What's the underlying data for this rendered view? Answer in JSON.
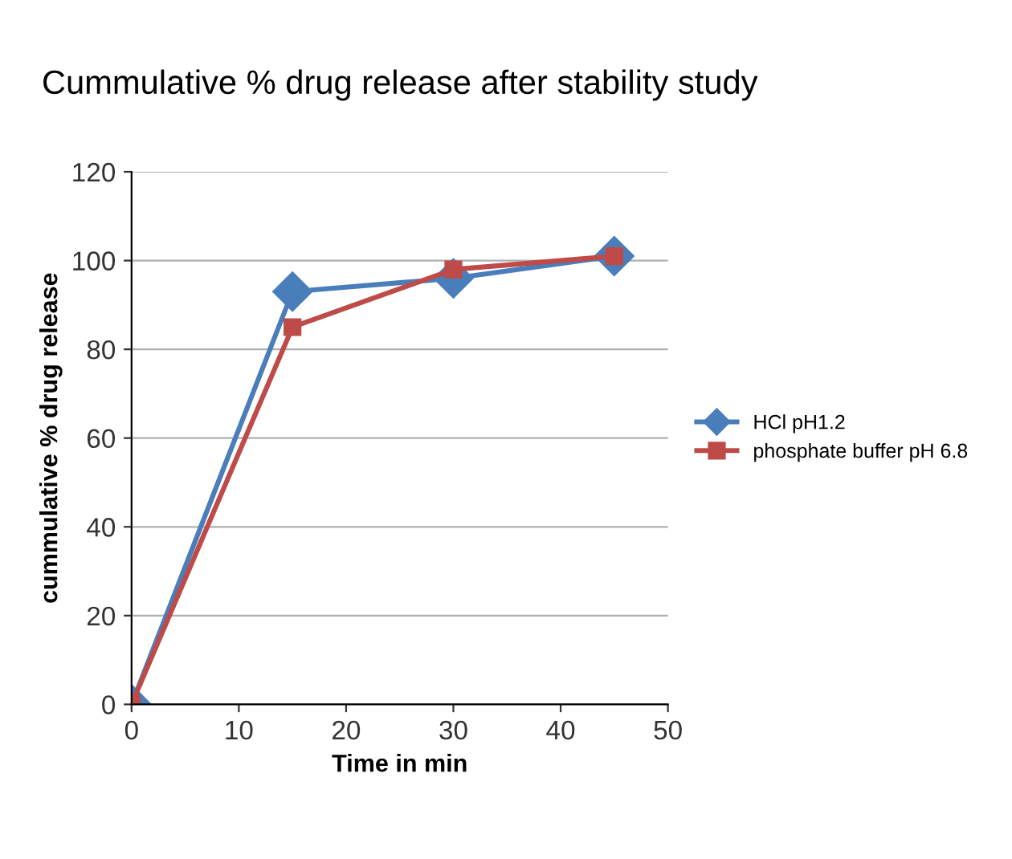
{
  "chart_data": {
    "type": "line",
    "title": "Cummulative % drug release after stability study",
    "xlabel": "Time in min",
    "ylabel": "cummulative % drug release",
    "x": [
      0,
      15,
      30,
      45
    ],
    "series": [
      {
        "name": "HCl pH1.2",
        "color": "#4a7ebb",
        "marker": "diamond",
        "values": [
          0,
          93,
          96,
          101
        ]
      },
      {
        "name": "phosphate buffer pH 6.8",
        "color": "#be4b48",
        "marker": "square",
        "values": [
          0,
          85,
          98,
          101
        ]
      }
    ],
    "xlim": [
      0,
      50
    ],
    "xticks": [
      0,
      10,
      20,
      30,
      40,
      50
    ],
    "ylim": [
      0,
      120
    ],
    "yticks": [
      0,
      20,
      40,
      60,
      80,
      100,
      120
    ],
    "grid": "y",
    "legend": "right",
    "line_style": "solid"
  }
}
